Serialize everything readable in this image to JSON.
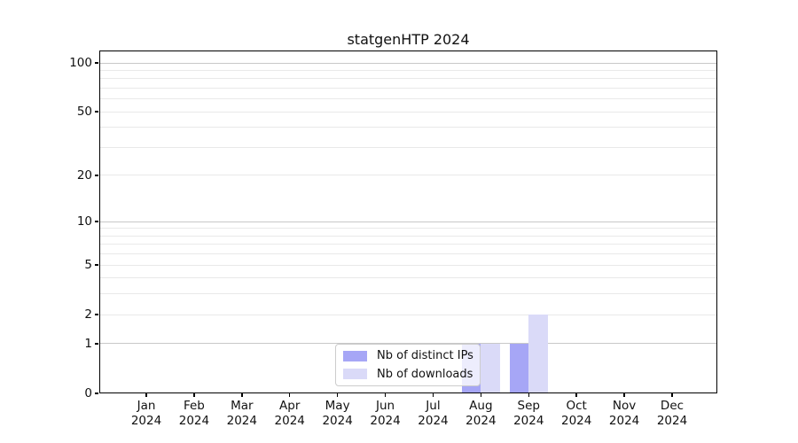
{
  "chart_data": {
    "type": "bar",
    "title": "statgenHTP 2024",
    "categories": [
      "Jan",
      "Feb",
      "Mar",
      "Apr",
      "May",
      "Jun",
      "Jul",
      "Aug",
      "Sep",
      "Oct",
      "Nov",
      "Dec"
    ],
    "year": "2024",
    "series": [
      {
        "name": "Nb of distinct IPs",
        "color": "#a6a6f6",
        "values": [
          0,
          0,
          0,
          0,
          0,
          0,
          0,
          1,
          1,
          0,
          0,
          0
        ]
      },
      {
        "name": "Nb of downloads",
        "color": "#dadaf8",
        "values": [
          0,
          0,
          0,
          0,
          0,
          0,
          0,
          1,
          2,
          0,
          0,
          0
        ]
      }
    ],
    "yscale": "log1p",
    "ylim": [
      0,
      100
    ],
    "yticks": [
      0,
      1,
      2,
      5,
      10,
      20,
      50,
      100
    ],
    "grid_lines": {
      "major": [
        1,
        10,
        100
      ],
      "minor": [
        2,
        3,
        4,
        5,
        6,
        7,
        8,
        9,
        20,
        30,
        40,
        50,
        60,
        70,
        80,
        90
      ]
    },
    "grid": "horizontal",
    "legend_position": "lower center",
    "colors": {
      "grid_major": "#c8c8c8",
      "grid_minor": "#e9e9e9",
      "axis": "#000000",
      "text": "#111111"
    }
  }
}
